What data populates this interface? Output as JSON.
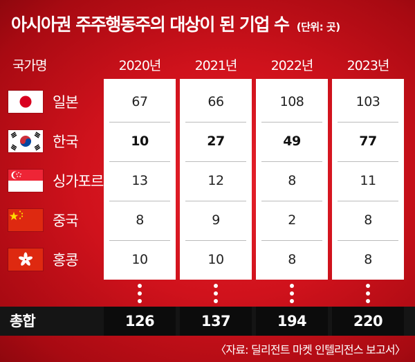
{
  "title": "아시아권 주주행동주의 대상이 된 기업 수",
  "unit": "(단위: 곳)",
  "colors": {
    "background": "#d0121c",
    "total_bar": "#151515",
    "cell": "#ffffff"
  },
  "chart_data": {
    "type": "table",
    "row_header": "국가명",
    "columns": [
      "2020년",
      "2021년",
      "2022년",
      "2023년"
    ],
    "rows": [
      {
        "name": "일본",
        "flag": "japan-flag",
        "values": [
          67,
          66,
          108,
          103
        ]
      },
      {
        "name": "한국",
        "flag": "korea-flag",
        "values": [
          10,
          27,
          49,
          77
        ]
      },
      {
        "name": "싱가포르",
        "flag": "singapore-flag",
        "values": [
          13,
          12,
          8,
          11
        ]
      },
      {
        "name": "중국",
        "flag": "china-flag",
        "values": [
          8,
          9,
          2,
          8
        ]
      },
      {
        "name": "홍콩",
        "flag": "hongkong-flag",
        "values": [
          10,
          10,
          8,
          8
        ]
      }
    ],
    "total_label": "총합",
    "totals": [
      126,
      137,
      194,
      220
    ]
  },
  "source": "〈자료: 딜리전트 마켓 인텔리전스 보고서〉"
}
